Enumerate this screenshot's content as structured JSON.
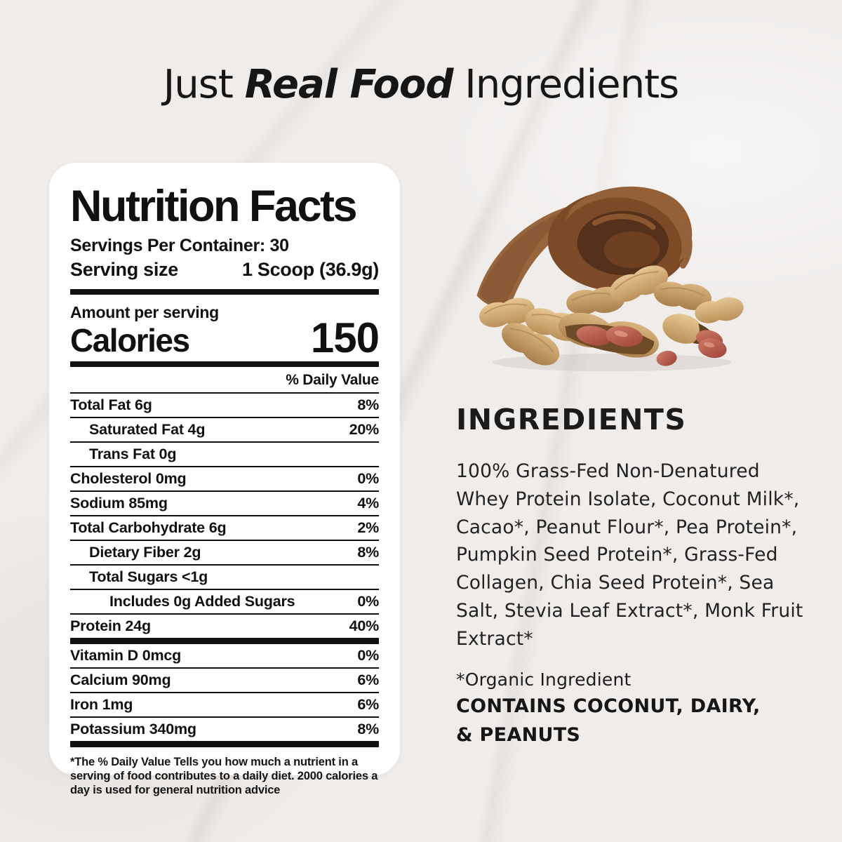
{
  "title": {
    "prefix": "Just ",
    "emphasis": "Real Food",
    "suffix": " Ingredients"
  },
  "label": {
    "heading": "Nutrition Facts",
    "servings_per_container": "Servings Per Container: 30",
    "serving_size_label": "Serving size",
    "serving_size_value": "1 Scoop (36.9g)",
    "amount_per_serving": "Amount per serving",
    "calories_label": "Calories",
    "calories_value": "150",
    "daily_value_header": "% Daily Value",
    "rows": [
      {
        "name": "Total Fat 6g",
        "dv": "8%",
        "bold": true,
        "indent": 0,
        "bar_after": false
      },
      {
        "name": "Saturated Fat 4g",
        "dv": "20%",
        "bold": false,
        "indent": 1,
        "bar_after": false
      },
      {
        "name": "Trans Fat 0g",
        "dv": "",
        "bold": false,
        "indent": 1,
        "bar_after": false
      },
      {
        "name": "Cholesterol 0mg",
        "dv": "0%",
        "bold": true,
        "indent": 0,
        "bar_after": false
      },
      {
        "name": "Sodium 85mg",
        "dv": "4%",
        "bold": true,
        "indent": 0,
        "bar_after": false
      },
      {
        "name": "Total Carbohydrate 6g",
        "dv": "2%",
        "bold": true,
        "indent": 0,
        "bar_after": false
      },
      {
        "name": "Dietary Fiber 2g",
        "dv": "8%",
        "bold": false,
        "indent": 1,
        "bar_after": false
      },
      {
        "name": "Total Sugars <1g",
        "dv": "",
        "bold": false,
        "indent": 1,
        "bar_after": false
      },
      {
        "name": "Includes 0g Added Sugars",
        "dv": "0%",
        "bold": false,
        "indent": 2,
        "bar_after": false
      },
      {
        "name": "Protein 24g",
        "dv": "40%",
        "bold": true,
        "indent": 0,
        "bar_after": true
      },
      {
        "name": "Vitamin D 0mcg",
        "dv": "0%",
        "bold": false,
        "indent": 0,
        "bar_after": false
      },
      {
        "name": "Calcium 90mg",
        "dv": "6%",
        "bold": false,
        "indent": 0,
        "bar_after": false
      },
      {
        "name": "Iron 1mg",
        "dv": "6%",
        "bold": false,
        "indent": 0,
        "bar_after": false
      },
      {
        "name": "Potassium 340mg",
        "dv": "8%",
        "bold": false,
        "indent": 0,
        "bar_after": true
      }
    ],
    "footnote": "*The % Daily Value Tells you how much a nutrient in a serving of food contributes to a daily diet. 2000 calories a day is used for general nutrition advice"
  },
  "ingredients": {
    "heading": "INGREDIENTS",
    "body": "100% Grass-Fed Non-Denatured Whey Protein Isolate, Coconut Milk*, Cacao*, Peanut Flour*, Pea Protein*, Pumpkin Seed Protein*, Grass-Fed Collagen, Chia Seed Protein*, Sea Salt, Stevia Leaf Extract*, Monk Fruit Extract*",
    "organic_note": "*Organic Ingredient",
    "contains": "CONTAINS COCONUT, DAIRY, & PEANUTS"
  },
  "hero_image": {
    "description": "chocolate curl with peanuts in shell and red peanut kernels"
  },
  "colors": {
    "background": "#efecea",
    "card": "#ffffff",
    "text": "#111111",
    "chocolate": "#7c4a27",
    "peanut_shell": "#d2a96f",
    "peanut_kernel": "#b5524a"
  }
}
